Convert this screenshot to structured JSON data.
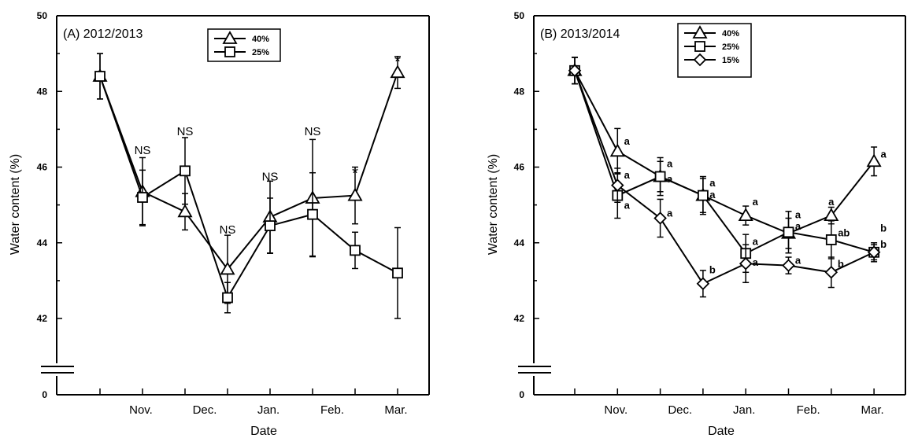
{
  "chart_data": [
    {
      "type": "line",
      "title": "(A) 2012/2013",
      "xlabel": "Date",
      "ylabel": "Water content (%)",
      "yticks": [
        "50",
        "48",
        "46",
        "44",
        "42",
        "0"
      ],
      "xtick_labels": [
        "Nov.",
        "Dec.",
        "Jan.",
        "Feb.",
        "Mar."
      ],
      "x_points": [
        1,
        2,
        3,
        4,
        5,
        6,
        7,
        8
      ],
      "ylim": [
        42,
        50
      ],
      "axis_break": true,
      "legend_position": "top-center",
      "series": [
        {
          "name": "40%",
          "marker": "triangle",
          "values": [
            48.4,
            45.35,
            44.82,
            43.3,
            44.68,
            45.18,
            45.25,
            48.5
          ],
          "errors": [
            0.6,
            0.9,
            0.48,
            0.9,
            0.95,
            1.55,
            0.75,
            0.42
          ]
        },
        {
          "name": "25%",
          "marker": "square",
          "values": [
            48.4,
            45.2,
            45.9,
            42.55,
            44.45,
            44.75,
            43.8,
            43.2
          ],
          "errors": [
            0.6,
            0.72,
            0.88,
            0.4,
            0.73,
            1.1,
            0.48,
            1.2
          ]
        }
      ],
      "annotations": [
        {
          "text": "NS",
          "point": 2,
          "y": 46.45
        },
        {
          "text": "NS",
          "point": 3,
          "y": 46.95
        },
        {
          "text": "NS",
          "point": 4,
          "y": 44.35
        },
        {
          "text": "NS",
          "point": 5,
          "y": 45.75
        },
        {
          "text": "NS",
          "point": 6,
          "y": 46.95
        },
        {
          "text": "*",
          "point": 7,
          "y": 45.95
        },
        {
          "text": "*",
          "point": 8,
          "y": 48.9
        }
      ]
    },
    {
      "type": "line",
      "title": "(B) 2013/2014",
      "xlabel": "Date",
      "ylabel": "Water content (%)",
      "yticks": [
        "50",
        "48",
        "46",
        "44",
        "42",
        "0"
      ],
      "xtick_labels": [
        "Nov.",
        "Dec.",
        "Jan.",
        "Feb.",
        "Mar."
      ],
      "x_points": [
        1,
        2,
        3,
        4,
        5,
        6,
        7,
        8
      ],
      "ylim": [
        42,
        50
      ],
      "axis_break": true,
      "legend_position": "top-left",
      "series": [
        {
          "name": "40%",
          "marker": "triangle",
          "values": [
            48.55,
            46.42,
            45.75,
            45.25,
            44.72,
            44.25,
            44.72,
            46.15
          ],
          "errors": [
            0.35,
            0.6,
            0.4,
            0.45,
            0.25,
            0.4,
            0.22,
            0.38
          ]
        },
        {
          "name": "25%",
          "marker": "square",
          "values": [
            48.55,
            45.25,
            45.75,
            45.25,
            43.72,
            44.28,
            44.08,
            43.75
          ],
          "errors": [
            0.35,
            0.6,
            0.5,
            0.5,
            0.5,
            0.55,
            0.5,
            0.25
          ]
        },
        {
          "name": "15%",
          "marker": "diamond",
          "values": [
            48.55,
            45.52,
            44.65,
            42.92,
            43.45,
            43.4,
            43.22,
            43.75
          ],
          "errors": [
            0.35,
            0.45,
            0.5,
            0.35,
            0.5,
            0.22,
            0.4,
            0.2
          ]
        }
      ],
      "annotations": [
        {
          "text": "a",
          "point": 2,
          "y": 46.7,
          "dx": 12
        },
        {
          "text": "a",
          "point": 2,
          "y": 45.8,
          "dx": 12
        },
        {
          "text": "a",
          "point": 2,
          "y": 45.0,
          "dx": 12
        },
        {
          "text": "a",
          "point": 3,
          "y": 46.1,
          "dx": 12
        },
        {
          "text": "a",
          "point": 3,
          "y": 45.7,
          "dx": 12
        },
        {
          "text": "a",
          "point": 3,
          "y": 44.8,
          "dx": 12
        },
        {
          "text": "a",
          "point": 4,
          "y": 45.6,
          "dx": 12
        },
        {
          "text": "a",
          "point": 4,
          "y": 45.28,
          "dx": 12
        },
        {
          "text": "b",
          "point": 4,
          "y": 43.3,
          "dx": 12
        },
        {
          "text": "a",
          "point": 5,
          "y": 45.1,
          "dx": 12
        },
        {
          "text": "a",
          "point": 5,
          "y": 44.05,
          "dx": 12
        },
        {
          "text": "a",
          "point": 5,
          "y": 43.5,
          "dx": 12
        },
        {
          "text": "a",
          "point": 6,
          "y": 44.75,
          "dx": 12
        },
        {
          "text": "a",
          "point": 6,
          "y": 44.45,
          "dx": 12
        },
        {
          "text": "a",
          "point": 6,
          "y": 43.55,
          "dx": 12
        },
        {
          "text": "a",
          "point": 7,
          "y": 45.1,
          "dx": 0
        },
        {
          "text": "ab",
          "point": 7,
          "y": 44.28,
          "dx": 16
        },
        {
          "text": "b",
          "point": 7,
          "y": 43.45,
          "dx": 12
        },
        {
          "text": "a",
          "point": 8,
          "y": 46.35,
          "dx": 12
        },
        {
          "text": "b",
          "point": 8,
          "y": 44.4,
          "dx": 12
        },
        {
          "text": "b",
          "point": 8,
          "y": 43.97,
          "dx": 12
        }
      ]
    }
  ]
}
